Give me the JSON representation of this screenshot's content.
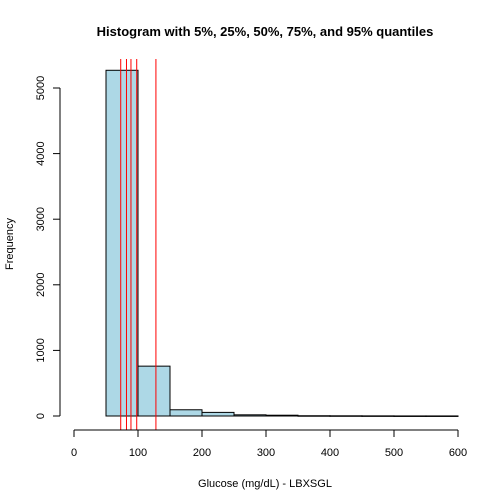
{
  "chart_data": {
    "type": "bar",
    "title": "Histogram with 5%, 25%, 50%, 75%, and 95% quantiles",
    "xlabel": "Glucose (mg/dL) - LBXSGL",
    "ylabel": "Frequency",
    "xlim": [
      0,
      600
    ],
    "ylim": [
      0,
      5300
    ],
    "x_ticks": [
      0,
      100,
      200,
      300,
      400,
      500,
      600
    ],
    "y_ticks": [
      0,
      1000,
      2000,
      3000,
      4000,
      5000
    ],
    "bin_edges": [
      50,
      100,
      150,
      200,
      250,
      300,
      350,
      400,
      450,
      500,
      550,
      600
    ],
    "values": [
      5270,
      760,
      95,
      55,
      18,
      12,
      4,
      3,
      2,
      1,
      1
    ],
    "quantiles": [
      {
        "p": "5%",
        "value": 73
      },
      {
        "p": "25%",
        "value": 82
      },
      {
        "p": "50%",
        "value": 89
      },
      {
        "p": "75%",
        "value": 98
      },
      {
        "p": "95%",
        "value": 128
      }
    ],
    "bar_color": "#add8e6",
    "quantile_color": "#ff0000",
    "grid": false,
    "legend": "none"
  }
}
